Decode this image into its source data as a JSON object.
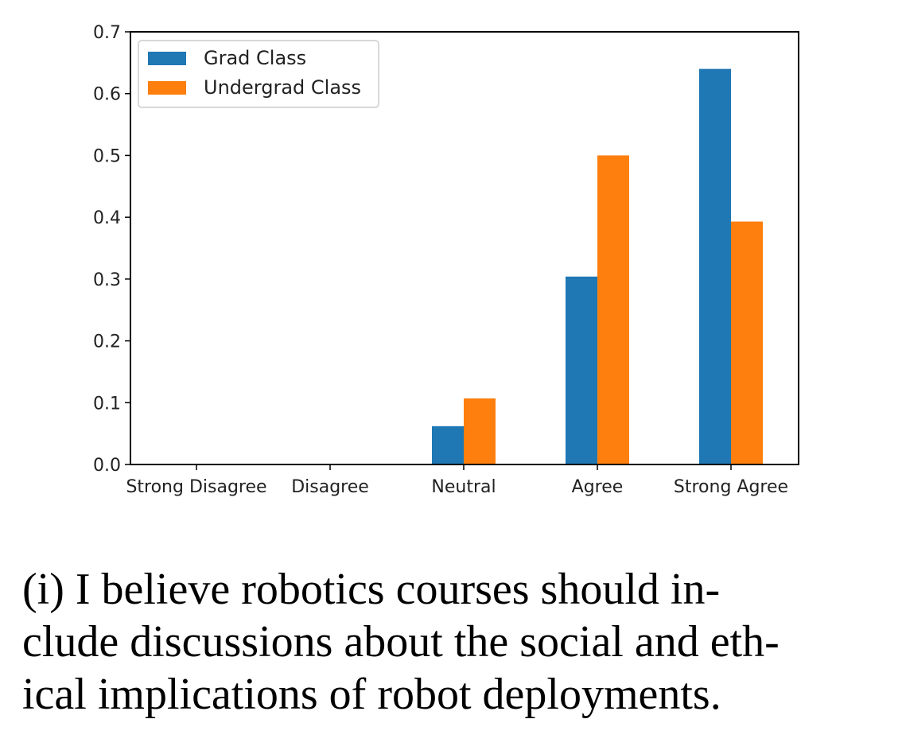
{
  "chart_data": {
    "type": "bar",
    "categories": [
      "Strong Disagree",
      "Disagree",
      "Neutral",
      "Agree",
      "Strong Agree"
    ],
    "series": [
      {
        "name": "Grad Class",
        "color": "#1f77b4",
        "values": [
          0.0,
          0.0,
          0.062,
          0.304,
          0.64
        ]
      },
      {
        "name": "Undergrad Class",
        "color": "#ff7f0e",
        "values": [
          0.0,
          0.0,
          0.107,
          0.5,
          0.393
        ]
      }
    ],
    "yticks": [
      "0.0",
      "0.1",
      "0.2",
      "0.3",
      "0.4",
      "0.5",
      "0.6",
      "0.7"
    ],
    "ylim": [
      0,
      0.7
    ],
    "legend_position": "top-left",
    "grid": false
  },
  "caption": {
    "line1": "(i) I believe robotics courses should in-",
    "line2": "clude discussions about the social and eth-",
    "line3": "ical implications of robot deployments."
  }
}
